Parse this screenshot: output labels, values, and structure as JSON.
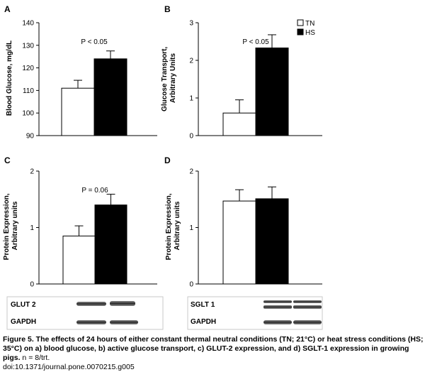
{
  "legend": [
    {
      "label": "TN",
      "color": "#ffffff"
    },
    {
      "label": "HS",
      "color": "#000000"
    }
  ],
  "chart_data": [
    {
      "panel": "A",
      "type": "bar",
      "categories": [
        "TN",
        "HS"
      ],
      "values": [
        111,
        124
      ],
      "errors": [
        3.5,
        3.5
      ],
      "ylabel": "Blood Glucose, mg/dL",
      "ylim": [
        90,
        140
      ],
      "yticks": [
        90,
        100,
        110,
        120,
        130,
        140
      ],
      "annotation": "P < 0.05",
      "colors": [
        "#ffffff",
        "#000000"
      ]
    },
    {
      "panel": "B",
      "type": "bar",
      "categories": [
        "TN",
        "HS"
      ],
      "values": [
        0.6,
        2.33
      ],
      "errors": [
        0.35,
        0.35
      ],
      "ylabel": "Glucose Transport, Arbitrary Units",
      "ylim": [
        0,
        3
      ],
      "yticks": [
        0,
        1,
        2,
        3
      ],
      "annotation": "P < 0.05",
      "colors": [
        "#ffffff",
        "#000000"
      ]
    },
    {
      "panel": "C",
      "type": "bar",
      "categories": [
        "TN",
        "HS"
      ],
      "values": [
        0.85,
        1.4
      ],
      "errors": [
        0.18,
        0.19
      ],
      "ylabel": "Protein Expression, Arbitrary units",
      "ylim": [
        0,
        2
      ],
      "yticks": [
        0,
        1,
        2
      ],
      "annotation": "P = 0.06",
      "colors": [
        "#ffffff",
        "#000000"
      ],
      "blot": [
        "GLUT 2",
        "GAPDH"
      ]
    },
    {
      "panel": "D",
      "type": "bar",
      "categories": [
        "TN",
        "HS"
      ],
      "values": [
        1.47,
        1.51
      ],
      "errors": [
        0.2,
        0.21
      ],
      "ylabel": "Protein Expression, Arbitrary units",
      "ylim": [
        0,
        2
      ],
      "yticks": [
        0,
        1,
        2
      ],
      "annotation": "",
      "colors": [
        "#ffffff",
        "#000000"
      ],
      "blot": [
        "SGLT 1",
        "GAPDH"
      ]
    }
  ],
  "caption": {
    "bold": "Figure 5. The effects of 24 hours of either constant thermal neutral conditions (TN; 21°C) or heat stress conditions (HS; 35°C) on a) blood glucose, b) active glucose transport, c) GLUT-2 expression, and d) SGLT-1 expression in growing pigs.",
    "plain": " n = 8/trt.",
    "doi": "doi:10.1371/journal.pone.0070215.g005"
  }
}
